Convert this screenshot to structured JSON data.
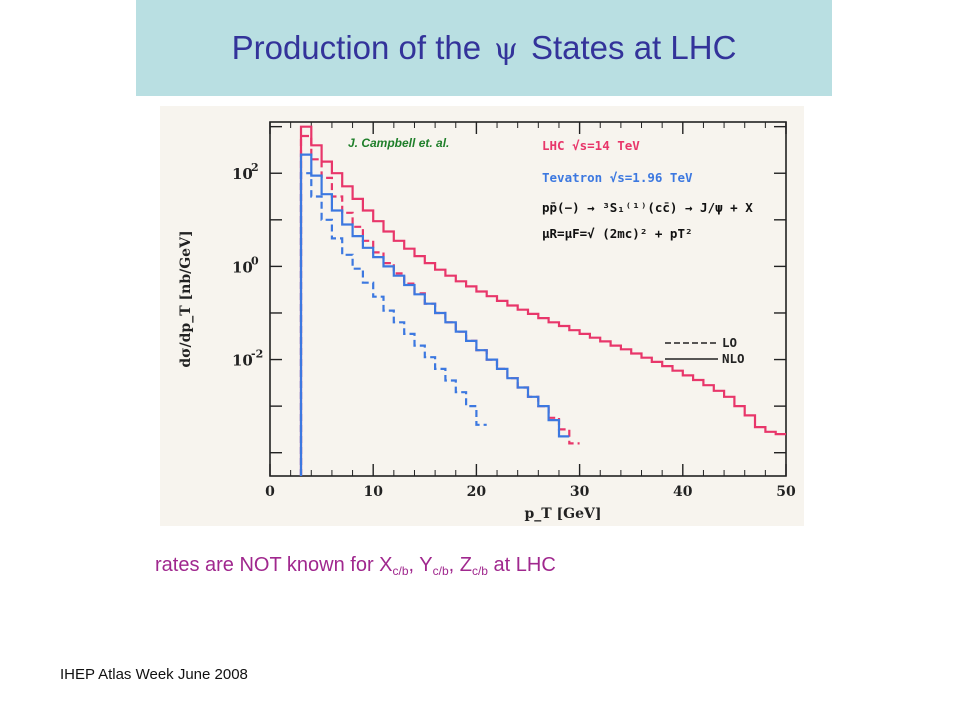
{
  "slide": {
    "title_prefix": "Production of the",
    "title_symbol": "ψ",
    "title_suffix": "States at LHC",
    "rates_text": {
      "part1": "rates are NOT known for X",
      "sub1": "c/b",
      "part2": ", Y",
      "sub2": "c/b",
      "part3": ", Z",
      "sub3": "c/b",
      "part4": " at LHC"
    },
    "footer": "IHEP Atlas Week June 2008"
  },
  "colors": {
    "title_bar": "#b9dfe2",
    "title_text": "#33339a",
    "plot_background": "#f7f4ee",
    "lhc": "#e8366a",
    "tevatron": "#3c78e0",
    "citation": "#1f7f2a",
    "rates_text": "#a0288e"
  },
  "chart_data": {
    "type": "line",
    "step": true,
    "log_y": true,
    "xlim": [
      0,
      50
    ],
    "ylim": [
      -4.5,
      3.1
    ],
    "xlabel": "p_T [GeV]",
    "ylabel": "dσ/dp_T [nb/GeV]",
    "xticks": [
      0,
      10,
      20,
      30,
      40,
      50
    ],
    "yticks": [
      {
        "exp": 2,
        "label": "10",
        "sup": "2"
      },
      {
        "exp": 0,
        "label": "10",
        "sup": "0"
      },
      {
        "exp": -2,
        "label": "10",
        "sup": "-2"
      }
    ],
    "citation": "J. Campbell et. al.",
    "legend_lines": [
      {
        "text": "LHC √s=14 TeV",
        "color": "lhc"
      },
      {
        "text": "Tevatron √s=1.96 TeV",
        "color": "tevatron"
      },
      {
        "text": "pp̄(−) → ³S₁⁽¹⁾(cc̄) → J/ψ + X",
        "color": "black"
      },
      {
        "text": "μR=μF=√ (2mc)² + pT²",
        "color": "black"
      }
    ],
    "style_legend": [
      {
        "label": "LO",
        "dash": "dashed"
      },
      {
        "label": "NLO",
        "dash": "solid"
      }
    ],
    "bin_edges": [
      3,
      4,
      5,
      6,
      7,
      8,
      9,
      10,
      11,
      12,
      13,
      14,
      15,
      16,
      17,
      18,
      19,
      20,
      21,
      22,
      23,
      24,
      25,
      26,
      27,
      28,
      29,
      30,
      31,
      32,
      33,
      34,
      35,
      36,
      37,
      38,
      39,
      40,
      41,
      42,
      43,
      44,
      45,
      46,
      47,
      48,
      49,
      50
    ],
    "series": [
      {
        "name": "LHC NLO",
        "color": "lhc",
        "dash": "solid",
        "log10_values": [
          3.0,
          2.6,
          2.25,
          2.0,
          1.72,
          1.45,
          1.2,
          0.97,
          0.75,
          0.55,
          0.38,
          0.22,
          0.07,
          -0.07,
          -0.2,
          -0.32,
          -0.43,
          -0.54,
          -0.64,
          -0.74,
          -0.84,
          -0.93,
          -1.02,
          -1.11,
          -1.2,
          -1.28,
          -1.37,
          -1.45,
          -1.53,
          -1.61,
          -1.7,
          -1.78,
          -1.87,
          -1.96,
          -2.05,
          -2.14,
          -2.24,
          -2.34,
          -2.44,
          -2.55,
          -2.67,
          -2.8,
          -3.0,
          -3.2,
          -3.45,
          -3.55,
          -3.6
        ]
      },
      {
        "name": "LHC LO",
        "color": "lhc",
        "dash": "dashed",
        "log10_values": [
          2.8,
          2.3,
          1.9,
          1.5,
          1.15,
          0.85,
          0.55,
          0.3,
          0.07,
          -0.15,
          -0.37,
          -0.58,
          -0.8,
          -1.0,
          -1.2,
          -1.4,
          -1.6,
          -1.8,
          -2.0,
          -2.2,
          -2.4,
          -2.6,
          -2.8,
          -3.0,
          -3.25,
          -3.5,
          -3.8
        ]
      },
      {
        "name": "Tevatron NLO",
        "color": "tevatron",
        "dash": "solid",
        "log10_values": [
          2.4,
          1.95,
          1.55,
          1.2,
          0.9,
          0.65,
          0.4,
          0.2,
          0.0,
          -0.2,
          -0.4,
          -0.6,
          -0.8,
          -1.0,
          -1.2,
          -1.4,
          -1.6,
          -1.8,
          -2.0,
          -2.2,
          -2.4,
          -2.6,
          -2.8,
          -3.0,
          -3.3,
          -3.65
        ]
      },
      {
        "name": "Tevatron LO",
        "color": "tevatron",
        "dash": "dashed",
        "log10_values": [
          2.0,
          1.5,
          1.0,
          0.6,
          0.25,
          -0.05,
          -0.35,
          -0.65,
          -0.95,
          -1.2,
          -1.45,
          -1.7,
          -1.95,
          -2.2,
          -2.45,
          -2.7,
          -3.0,
          -3.4
        ]
      }
    ]
  }
}
